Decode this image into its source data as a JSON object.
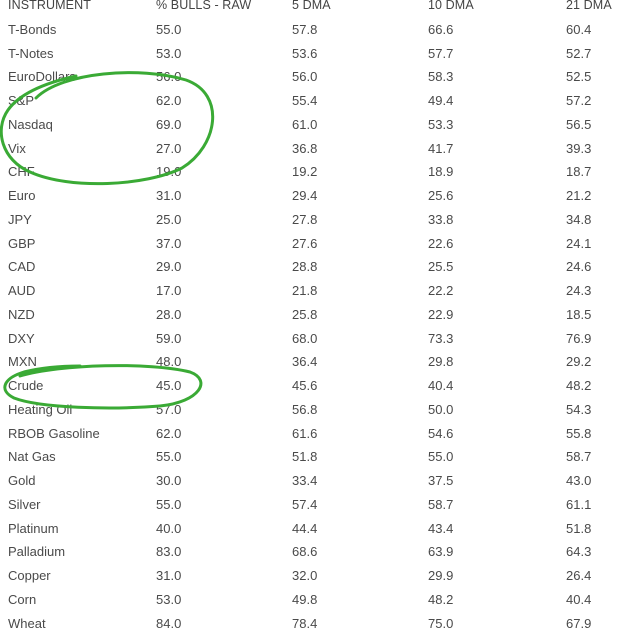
{
  "table": {
    "headers": [
      "INSTRUMENT",
      "% BULLS - RAW",
      "5 DMA",
      "10 DMA",
      "21 DMA"
    ],
    "rows": [
      [
        "T-Bonds",
        "55.0",
        "57.8",
        "66.6",
        "60.4"
      ],
      [
        "T-Notes",
        "53.0",
        "53.6",
        "57.7",
        "52.7"
      ],
      [
        "EuroDollars",
        "56.0",
        "56.0",
        "58.3",
        "52.5"
      ],
      [
        "S&P",
        "62.0",
        "55.4",
        "49.4",
        "57.2"
      ],
      [
        "Nasdaq",
        "69.0",
        "61.0",
        "53.3",
        "56.5"
      ],
      [
        "Vix",
        "27.0",
        "36.8",
        "41.7",
        "39.3"
      ],
      [
        "CHF",
        "19.0",
        "19.2",
        "18.9",
        "18.7"
      ],
      [
        "Euro",
        "31.0",
        "29.4",
        "25.6",
        "21.2"
      ],
      [
        "JPY",
        "25.0",
        "27.8",
        "33.8",
        "34.8"
      ],
      [
        "GBP",
        "37.0",
        "27.6",
        "22.6",
        "24.1"
      ],
      [
        "CAD",
        "29.0",
        "28.8",
        "25.5",
        "24.6"
      ],
      [
        "AUD",
        "17.0",
        "21.8",
        "22.2",
        "24.3"
      ],
      [
        "NZD",
        "28.0",
        "25.8",
        "22.9",
        "18.5"
      ],
      [
        "DXY",
        "59.0",
        "68.0",
        "73.3",
        "76.9"
      ],
      [
        "MXN",
        "48.0",
        "36.4",
        "29.8",
        "29.2"
      ],
      [
        "Crude",
        "45.0",
        "45.6",
        "40.4",
        "48.2"
      ],
      [
        "Heating Oil",
        "57.0",
        "56.8",
        "50.0",
        "54.3"
      ],
      [
        "RBOB Gasoline",
        "62.0",
        "61.6",
        "54.6",
        "55.8"
      ],
      [
        "Nat Gas",
        "55.0",
        "51.8",
        "55.0",
        "58.7"
      ],
      [
        "Gold",
        "30.0",
        "33.4",
        "37.5",
        "43.0"
      ],
      [
        "Silver",
        "55.0",
        "57.4",
        "58.7",
        "61.1"
      ],
      [
        "Platinum",
        "40.0",
        "44.4",
        "43.4",
        "51.8"
      ],
      [
        "Palladium",
        "83.0",
        "68.6",
        "63.9",
        "64.3"
      ],
      [
        "Copper",
        "31.0",
        "32.0",
        "29.9",
        "26.4"
      ],
      [
        "Corn",
        "53.0",
        "49.8",
        "48.2",
        "40.4"
      ],
      [
        "Wheat",
        "84.0",
        "78.4",
        "75.0",
        "67.9"
      ]
    ]
  },
  "annotations": {
    "color": "#3aaa35",
    "circled_rows": [
      "S&P",
      "Nasdaq",
      "Vix",
      "Crude"
    ]
  },
  "colors": {
    "text": "#4a4a4a",
    "background": "#ffffff"
  }
}
